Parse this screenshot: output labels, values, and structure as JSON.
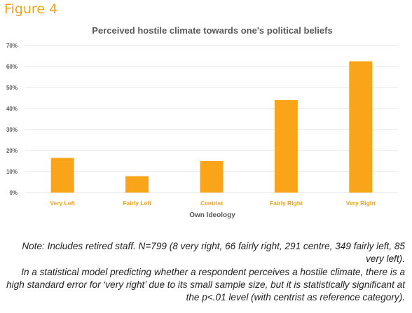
{
  "figure_label": "Figure 4",
  "colors": {
    "accent": "#f2a21b",
    "bar": "#faa41a",
    "grid": "#e3e3e3",
    "text": "#595959"
  },
  "chart_data": {
    "type": "bar",
    "title": "Perceived hostile climate towards one's political beliefs",
    "xlabel": "Own Ideology",
    "ylabel": "",
    "categories": [
      "Very Left",
      "Fairly Left",
      "Centrist",
      "Fairly Right",
      "Very Right"
    ],
    "values": [
      16.5,
      7.8,
      15,
      44,
      62.5
    ],
    "ylim": [
      0,
      70
    ],
    "yticks": [
      "0%",
      "10%",
      "20%",
      "30%",
      "40%",
      "50%",
      "60%",
      "70%"
    ],
    "grid": true,
    "legend": "none"
  },
  "note": {
    "line1": "Note: Includes retired staff. N=799 (8 very right, 66 fairly right, 291 centre, 349 fairly left, 85 very left).",
    "line2": "In a statistical model predicting whether a respondent perceives a hostile climate, there is a high standard error for ‘very right’ due to its small sample size, but it is statistically significant at the p<.01 level (with centrist as reference category)."
  }
}
